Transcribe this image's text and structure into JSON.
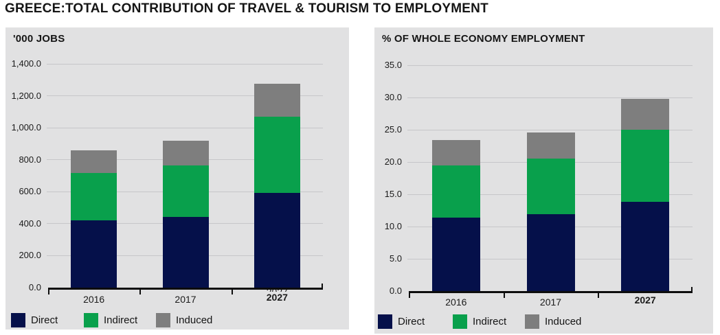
{
  "page_title": "GREECE:TOTAL CONTRIBUTION OF TRAVEL & TOURISM TO EMPLOYMENT",
  "colors": {
    "direct": "#05104a",
    "indirect": "#09a04c",
    "induced": "#7e7e7e",
    "panel_bg": "#e1e1e2",
    "gridline": "#c6c6c9",
    "axis": "#0d0d0d",
    "text": "#1a1a1a"
  },
  "legend": {
    "items": [
      {
        "label": "Direct",
        "color": "#05104a"
      },
      {
        "label": "Indirect",
        "color": "#09a04c"
      },
      {
        "label": "Induced",
        "color": "#7e7e7e"
      }
    ]
  },
  "chart_data": [
    {
      "type": "bar",
      "subtype": "stacked",
      "title": "'000 JOBS",
      "categories": [
        "2016",
        "2017",
        "2027"
      ],
      "series": [
        {
          "name": "Direct",
          "color": "#05104a",
          "values": [
            420,
            443,
            592
          ]
        },
        {
          "name": "Indirect",
          "color": "#09a04c",
          "values": [
            296,
            322,
            479
          ]
        },
        {
          "name": "Induced",
          "color": "#7e7e7e",
          "values": [
            144,
            152,
            203
          ]
        }
      ],
      "stack_totals": [
        860,
        917,
        1274
      ],
      "ylim": [
        0,
        1400
      ],
      "ytick_values": [
        0,
        200,
        400,
        600,
        800,
        1000,
        1200,
        1400
      ],
      "ytick_labels": [
        "0.0",
        "200.0",
        "400.0",
        "600.0",
        "800.0",
        "1,000.0",
        "1,200.0",
        "1,400.0"
      ],
      "grid": true,
      "legend_position": "bottom",
      "ghost_last_label": true
    },
    {
      "type": "bar",
      "subtype": "stacked",
      "title": "% OF WHOLE ECONOMY EMPLOYMENT",
      "categories": [
        "2016",
        "2017",
        "2027"
      ],
      "series": [
        {
          "name": "Direct",
          "color": "#05104a",
          "values": [
            11.4,
            11.9,
            13.8
          ]
        },
        {
          "name": "Indirect",
          "color": "#09a04c",
          "values": [
            8.1,
            8.6,
            11.2
          ]
        },
        {
          "name": "Induced",
          "color": "#7e7e7e",
          "values": [
            3.9,
            4.1,
            4.8
          ]
        }
      ],
      "stack_totals": [
        23.4,
        24.6,
        29.8
      ],
      "ylim": [
        0,
        35
      ],
      "ytick_values": [
        0,
        5,
        10,
        15,
        20,
        25,
        30,
        35
      ],
      "ytick_labels": [
        "0.0",
        "5.0",
        "10.0",
        "15.0",
        "20.0",
        "25.0",
        "30.0",
        "35.0"
      ],
      "grid": true,
      "legend_position": "bottom",
      "ghost_last_label": false
    }
  ]
}
